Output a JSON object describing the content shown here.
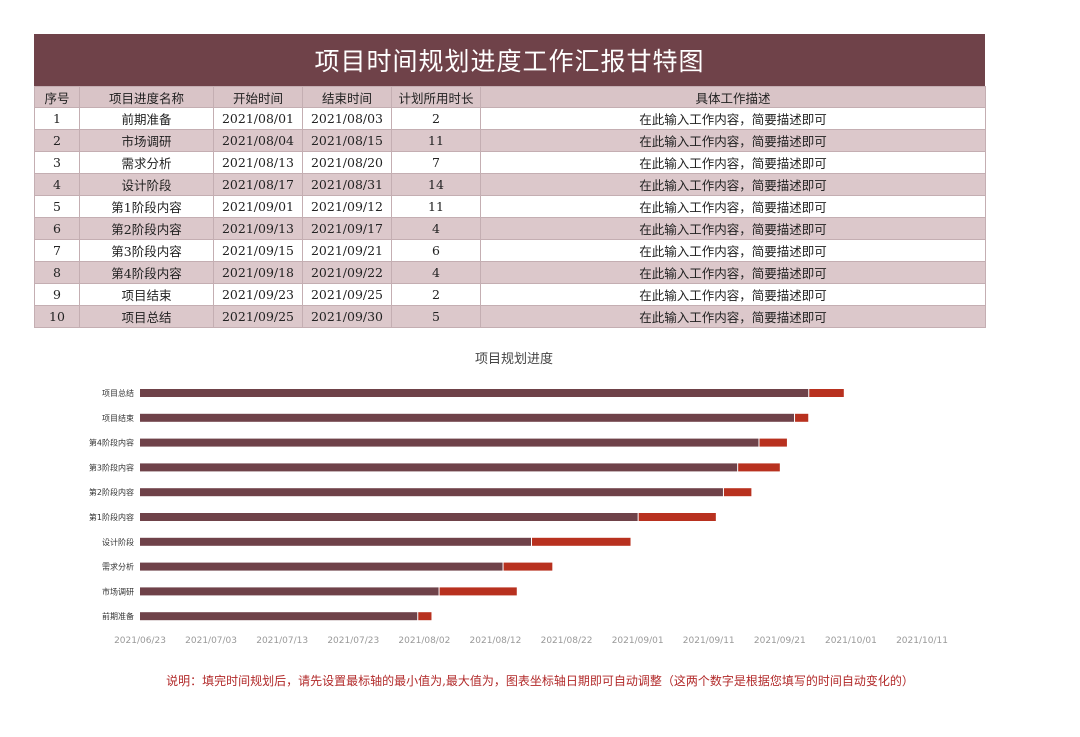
{
  "sheet": {
    "title": "项目时间规划进度工作汇报甘特图",
    "columns": [
      "序号",
      "项目进度名称",
      "开始时间",
      "结束时间",
      "计划所用时长",
      "具体工作描述"
    ],
    "rows": [
      [
        "1",
        "前期准备",
        "2021/08/01",
        "2021/08/03",
        "2",
        "在此输入工作内容，简要描述即可"
      ],
      [
        "2",
        "市场调研",
        "2021/08/04",
        "2021/08/15",
        "11",
        "在此输入工作内容，简要描述即可"
      ],
      [
        "3",
        "需求分析",
        "2021/08/13",
        "2021/08/20",
        "7",
        "在此输入工作内容，简要描述即可"
      ],
      [
        "4",
        "设计阶段",
        "2021/08/17",
        "2021/08/31",
        "14",
        "在此输入工作内容，简要描述即可"
      ],
      [
        "5",
        "第1阶段内容",
        "2021/09/01",
        "2021/09/12",
        "11",
        "在此输入工作内容，简要描述即可"
      ],
      [
        "6",
        "第2阶段内容",
        "2021/09/13",
        "2021/09/17",
        "4",
        "在此输入工作内容，简要描述即可"
      ],
      [
        "7",
        "第3阶段内容",
        "2021/09/15",
        "2021/09/21",
        "6",
        "在此输入工作内容，简要描述即可"
      ],
      [
        "8",
        "第4阶段内容",
        "2021/09/18",
        "2021/09/22",
        "4",
        "在此输入工作内容，简要描述即可"
      ],
      [
        "9",
        "项目结束",
        "2021/09/23",
        "2021/09/25",
        "2",
        "在此输入工作内容，简要描述即可"
      ],
      [
        "10",
        "项目总结",
        "2021/09/25",
        "2021/09/30",
        "5",
        "在此输入工作内容，简要描述即可"
      ]
    ]
  },
  "chart_data": {
    "type": "bar",
    "orientation": "horizontal",
    "stacked": true,
    "title": "项目规划进度",
    "categories": [
      "前期准备",
      "市场调研",
      "需求分析",
      "设计阶段",
      "第1阶段内容",
      "第2阶段内容",
      "第3阶段内容",
      "第4阶段内容",
      "项目结束",
      "项目总结"
    ],
    "series": [
      {
        "color": "#6f4249",
        "values": [
          "2021/08/01",
          "2021/08/04",
          "2021/08/13",
          "2021/08/17",
          "2021/09/01",
          "2021/09/13",
          "2021/09/15",
          "2021/09/18",
          "2021/09/23",
          "2021/09/25"
        ]
      },
      {
        "color": "#b8311f",
        "values": [
          2,
          11,
          7,
          14,
          11,
          4,
          6,
          4,
          2,
          5
        ]
      }
    ],
    "xlim": [
      "2021/06/23",
      "2021/10/11"
    ],
    "x_ticks": [
      "2021/06/23",
      "2021/07/03",
      "2021/07/13",
      "2021/07/23",
      "2021/08/02",
      "2021/08/12",
      "2021/08/22",
      "2021/09/01",
      "2021/09/11",
      "2021/09/21",
      "2021/10/01",
      "2021/10/11"
    ],
    "legend": "none",
    "grid": false
  },
  "note": "说明：填完时间规划后，请先设置最标轴的最小值为,最大值为，图表坐标轴日期即可自动调整（这两个数字是根据您填写的时间自动变化的）"
}
